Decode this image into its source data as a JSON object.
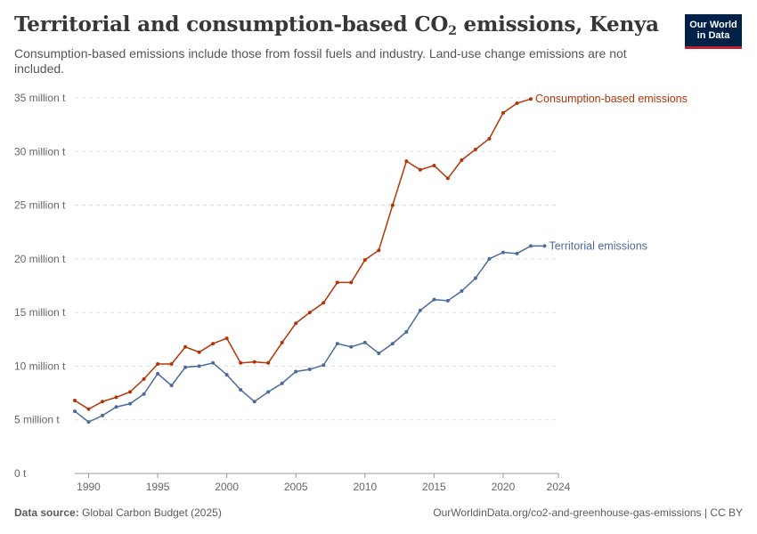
{
  "header": {
    "title_main": "Territorial and consumption-based CO",
    "title_sub": "2",
    "title_rest": " emissions, Kenya",
    "subtitle": "Consumption-based emissions include those from fossil fuels and industry. Land-use change emissions are not included.",
    "logo_line1": "Our World",
    "logo_line2": "in Data"
  },
  "footer": {
    "source_label": "Data source:",
    "source_value": "Global Carbon Budget (2025)",
    "right_text": "OurWorldinData.org/co2-and-greenhouse-gas-emissions | CC BY"
  },
  "chart_data": {
    "type": "line",
    "title": "Territorial and consumption-based CO₂ emissions, Kenya",
    "subtitle": "Consumption-based emissions include those from fossil fuels and industry. Land-use change emissions are not included.",
    "xlabel": "",
    "ylabel": "",
    "xlim": [
      1989,
      2024
    ],
    "ylim": [
      0,
      35000000
    ],
    "x_ticks": [
      1990,
      1995,
      2000,
      2005,
      2010,
      2015,
      2020,
      2024
    ],
    "y_ticks": [
      0,
      5000000,
      10000000,
      15000000,
      20000000,
      25000000,
      30000000,
      35000000
    ],
    "y_tick_labels": [
      "0 t",
      "5 million t",
      "10 million t",
      "15 million t",
      "20 million t",
      "25 million t",
      "30 million t",
      "35 million t"
    ],
    "grid": "horizontal dashed",
    "legend": "end-of-line labels",
    "x": [
      1989,
      1990,
      1991,
      1992,
      1993,
      1994,
      1995,
      1996,
      1997,
      1998,
      1999,
      2000,
      2001,
      2002,
      2003,
      2004,
      2005,
      2006,
      2007,
      2008,
      2009,
      2010,
      2011,
      2012,
      2013,
      2014,
      2015,
      2016,
      2017,
      2018,
      2019,
      2020,
      2021,
      2022,
      2023,
      2024
    ],
    "series": [
      {
        "name": "Consumption-based emissions",
        "color": "#b13507",
        "values": [
          6800000,
          6000000,
          6700000,
          7100000,
          7600000,
          8800000,
          10200000,
          10200000,
          11800000,
          11300000,
          12100000,
          12600000,
          10300000,
          10400000,
          10300000,
          12200000,
          14000000,
          15000000,
          15900000,
          17800000,
          17800000,
          19900000,
          20800000,
          25000000,
          29100000,
          28300000,
          28700000,
          27500000,
          29200000,
          30200000,
          31200000,
          33600000,
          34500000,
          34900000,
          null,
          null
        ]
      },
      {
        "name": "Territorial emissions",
        "color": "#4c6a9c",
        "values": [
          5800000,
          4800000,
          5400000,
          6200000,
          6500000,
          7400000,
          9300000,
          8200000,
          9900000,
          10000000,
          10300000,
          9200000,
          7800000,
          6700000,
          7600000,
          8400000,
          9500000,
          9700000,
          10100000,
          12100000,
          11800000,
          12200000,
          11200000,
          12100000,
          13200000,
          15200000,
          16200000,
          16100000,
          17000000,
          18200000,
          20000000,
          20600000,
          20500000,
          21200000,
          21200000,
          null
        ]
      }
    ]
  }
}
